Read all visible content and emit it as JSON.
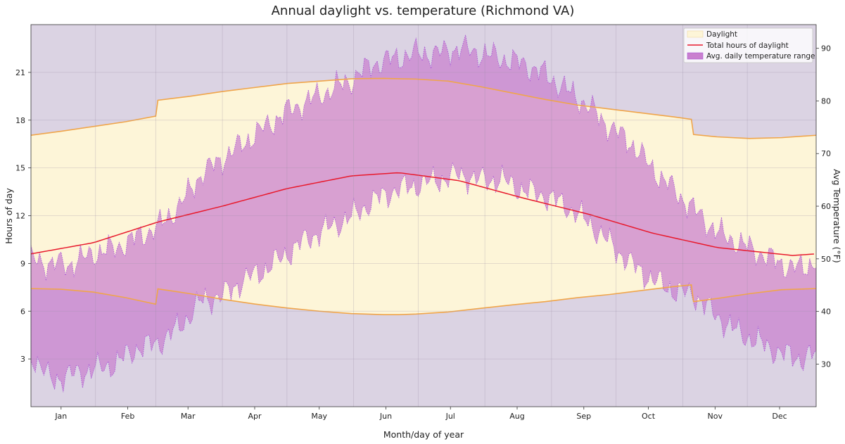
{
  "chart_data": {
    "type": "area",
    "title": "Annual daylight vs. temperature (Richmond VA)",
    "xlabel": "Month/day of year",
    "ylabel": "Hours of day",
    "y2label": "Avg Temperature (°F)",
    "x_domain": [
      1,
      366
    ],
    "ylim": [
      0,
      24
    ],
    "y2lim": [
      21.9,
      94.5
    ],
    "yticks": [
      3,
      6,
      9,
      12,
      15,
      18,
      21
    ],
    "y2ticks": [
      30,
      40,
      50,
      60,
      70,
      80,
      90
    ],
    "months": [
      {
        "label": "Jan",
        "center": 15,
        "boundary": 31
      },
      {
        "label": "Feb",
        "center": 46,
        "boundary": 59
      },
      {
        "label": "Mar",
        "center": 74,
        "boundary": 90
      },
      {
        "label": "Apr",
        "center": 105,
        "boundary": 120
      },
      {
        "label": "May",
        "center": 135,
        "boundary": 151
      },
      {
        "label": "Jun",
        "center": 166,
        "boundary": 181
      },
      {
        "label": "Jul",
        "center": 196,
        "boundary": 212
      },
      {
        "label": "Aug",
        "center": 227,
        "boundary": 243
      },
      {
        "label": "Sep",
        "center": 258,
        "boundary": 273
      },
      {
        "label": "Oct",
        "center": 288,
        "boundary": 304
      },
      {
        "label": "Nov",
        "center": 319,
        "boundary": 334
      },
      {
        "label": "Dec",
        "center": 349,
        "boundary": null
      }
    ],
    "grid": true,
    "legend": {
      "position": "top-right",
      "entries": [
        "Daylight",
        "Total hours of daylight",
        "Avg. daily temperature range"
      ]
    },
    "colors": {
      "night_background": "#dbd3e3",
      "daylight_fill": "#fdf5d8",
      "daylight_edge": "#f0a54a",
      "total_line": "#e8192c",
      "temp_fill": "#c97fcf",
      "temp_edge": "#a855d6"
    },
    "series": [
      {
        "name": "Daylight",
        "kind": "band",
        "axis": "left",
        "x": [
          1,
          15,
          30,
          45,
          59,
          60,
          75,
          90,
          105,
          120,
          135,
          150,
          165,
          172,
          180,
          195,
          210,
          225,
          240,
          255,
          270,
          285,
          300,
          308,
          309,
          320,
          335,
          350,
          366
        ],
        "sunrise": [
          7.42,
          7.38,
          7.2,
          6.85,
          6.44,
          7.4,
          7.1,
          6.75,
          6.45,
          6.2,
          6.0,
          5.85,
          5.78,
          5.78,
          5.82,
          5.95,
          6.18,
          6.4,
          6.6,
          6.85,
          7.05,
          7.3,
          7.55,
          7.65,
          6.6,
          6.8,
          7.1,
          7.35,
          7.42
        ],
        "sunset": [
          17.05,
          17.3,
          17.6,
          17.9,
          18.25,
          19.25,
          19.5,
          19.8,
          20.05,
          20.3,
          20.45,
          20.6,
          20.62,
          20.6,
          20.58,
          20.45,
          20.1,
          19.7,
          19.3,
          18.95,
          18.7,
          18.45,
          18.2,
          18.05,
          17.1,
          16.95,
          16.85,
          16.9,
          17.05
        ]
      },
      {
        "name": "Total hours of daylight",
        "kind": "line",
        "axis": "left",
        "x": [
          1,
          30,
          60,
          90,
          120,
          150,
          172,
          200,
          230,
          260,
          290,
          320,
          355,
          366
        ],
        "values": [
          9.6,
          10.3,
          11.6,
          12.6,
          13.7,
          14.5,
          14.7,
          14.2,
          13.1,
          12.1,
          10.9,
          10.0,
          9.5,
          9.6
        ]
      },
      {
        "name": "Avg. daily temperature range",
        "kind": "band",
        "axis": "right",
        "x": [
          1,
          10,
          20,
          30,
          40,
          50,
          60,
          70,
          80,
          90,
          100,
          110,
          120,
          130,
          140,
          150,
          160,
          170,
          180,
          190,
          200,
          210,
          220,
          230,
          240,
          250,
          260,
          270,
          280,
          290,
          300,
          310,
          320,
          330,
          340,
          350,
          360,
          366
        ],
        "low": [
          32,
          27,
          28,
          29,
          30,
          33,
          34,
          37,
          42,
          43,
          46,
          48,
          51,
          54,
          56,
          58,
          61,
          63,
          64,
          65,
          66,
          65,
          65,
          63,
          62,
          60,
          57,
          53,
          49,
          46,
          44,
          43,
          39,
          36,
          34,
          32,
          31,
          32
        ],
        "high": [
          50,
          49,
          49,
          51,
          52,
          54,
          56,
          60,
          66,
          69,
          72,
          75,
          78,
          80,
          82,
          84,
          87,
          88,
          89,
          89,
          90,
          89,
          88,
          87,
          85,
          82,
          79,
          75,
          72,
          67,
          63,
          59,
          55,
          53,
          51,
          49,
          48,
          50
        ]
      }
    ]
  }
}
